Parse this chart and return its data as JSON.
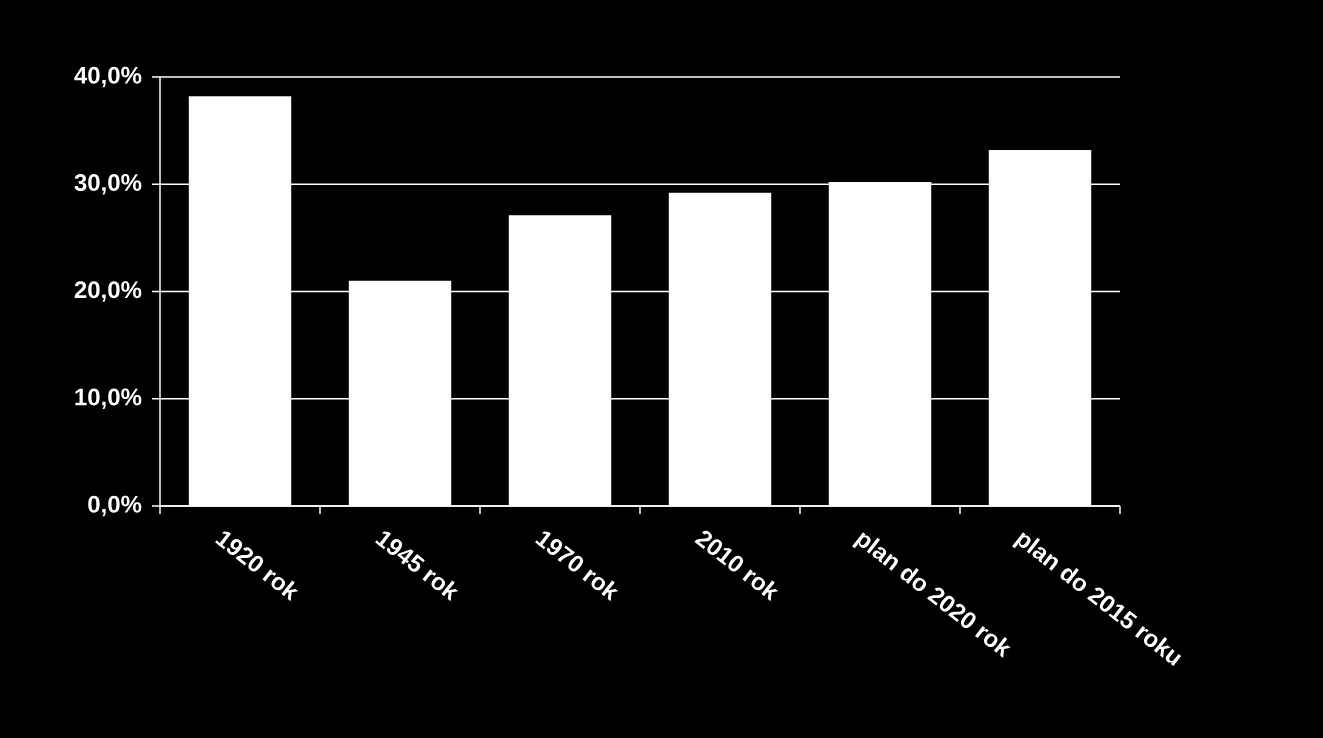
{
  "chart_data": {
    "type": "bar",
    "categories": [
      "1920 rok",
      "1945 rok",
      "1970 rok",
      "2010 rok",
      "plan do 2020 rok",
      "plan do 2015 roku"
    ],
    "values": [
      38.2,
      21.0,
      27.1,
      29.2,
      30.2,
      33.2
    ],
    "color": "#ffffff",
    "ylim": [
      0,
      40
    ],
    "yticks": [
      {
        "value": 0,
        "label": "0,0%"
      },
      {
        "value": 10,
        "label": "10,0%"
      },
      {
        "value": 20,
        "label": "20,0%"
      },
      {
        "value": 30,
        "label": "30,0%"
      },
      {
        "value": 40,
        "label": "40,0%"
      }
    ],
    "grid": "y"
  }
}
